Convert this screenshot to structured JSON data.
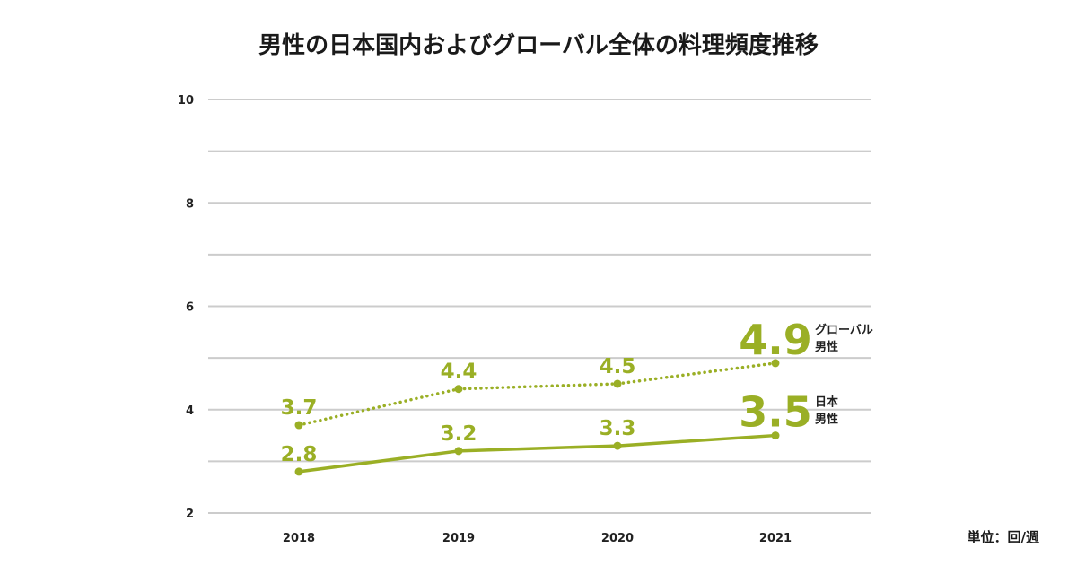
{
  "chart_data": {
    "type": "line",
    "title": "男性の日本国内およびグローバル全体の料理頻度推移",
    "unit_label": "単位：回/週",
    "categories": [
      "2018",
      "2019",
      "2020",
      "2021"
    ],
    "y_ticks": [
      "2",
      "4",
      "6",
      "8",
      "10"
    ],
    "ylim": [
      2,
      10
    ],
    "grid": true,
    "series": [
      {
        "name_line1": "グローバル",
        "name_line2": "男性",
        "style": "dotted",
        "values": [
          3.7,
          4.4,
          4.5,
          4.9
        ],
        "labels": [
          "3.7",
          "4.4",
          "4.5",
          "4.9"
        ]
      },
      {
        "name_line1": "日本",
        "name_line2": "男性",
        "style": "solid",
        "values": [
          2.8,
          3.2,
          3.3,
          3.5
        ],
        "labels": [
          "2.8",
          "3.2",
          "3.3",
          "3.5"
        ]
      }
    ],
    "colors": {
      "series": "#9aaf25",
      "grid": "#cccccc",
      "text": "#222222"
    }
  }
}
